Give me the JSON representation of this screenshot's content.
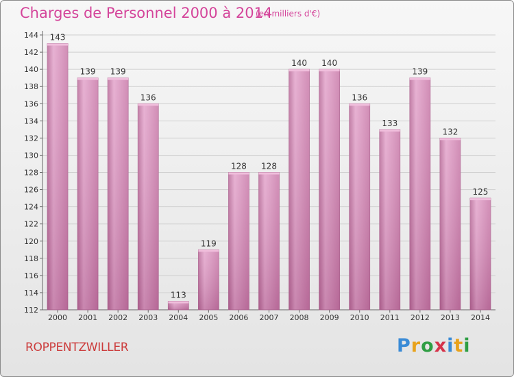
{
  "title": "Charges de Personnel 2000 à 2014",
  "subtitle": "(en milliers d'€)",
  "commune": "ROPPENTZWILLER",
  "logo": {
    "text": "Proxiti",
    "letters": [
      "P",
      "r",
      "o",
      "x",
      "i",
      "t",
      "i"
    ]
  },
  "colors": {
    "bar": "#d98ab8",
    "bar_top": "#e8a9cf",
    "title": "#d4449a",
    "commune": "#cc3c3c"
  },
  "chart_data": {
    "type": "bar",
    "title": "Charges de Personnel 2000 à 2014",
    "subtitle": "(en milliers d'€)",
    "categories": [
      "2000",
      "2001",
      "2002",
      "2003",
      "2004",
      "2005",
      "2006",
      "2007",
      "2008",
      "2009",
      "2010",
      "2011",
      "2012",
      "2013",
      "2014"
    ],
    "values": [
      143,
      139,
      139,
      136,
      113,
      119,
      128,
      128,
      140,
      140,
      136,
      133,
      139,
      132,
      125
    ],
    "data_labels": [
      "143",
      "139",
      "139",
      "136",
      "113",
      "119",
      "128",
      "128",
      "140",
      "140",
      "136",
      "133",
      "139",
      "132",
      "125"
    ],
    "ylim": [
      112,
      144
    ],
    "yticks": [
      112,
      114,
      116,
      118,
      120,
      122,
      124,
      126,
      128,
      130,
      132,
      134,
      136,
      138,
      140,
      142,
      144
    ],
    "ytick_labels": [
      "112",
      "114",
      "116",
      "118",
      "120",
      "122",
      "124",
      "126",
      "128",
      "130",
      "132",
      "134",
      "136",
      "138",
      "140",
      "142",
      "144"
    ],
    "grid": true,
    "xlabel": "",
    "ylabel": ""
  }
}
